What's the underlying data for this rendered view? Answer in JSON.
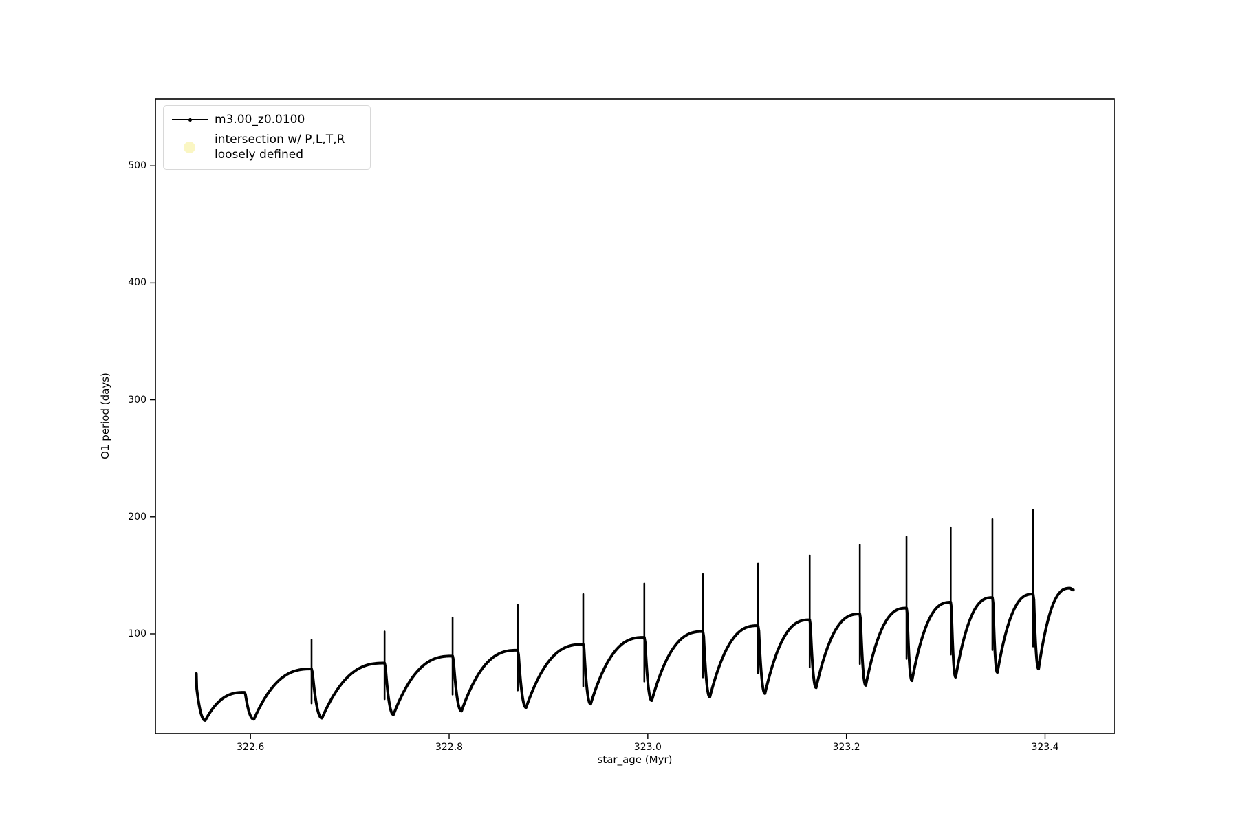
{
  "figure": {
    "background": "#ffffff"
  },
  "legend": {
    "entries": [
      {
        "label": "m3.00_z0.0100",
        "marker": "line-with-dot",
        "color": "#000000"
      },
      {
        "label_line1": "intersection w/ P,L,T,R",
        "label_line2": "loosely defined",
        "marker": "circle",
        "color": "#faf6c3"
      }
    ]
  },
  "chart_data": {
    "type": "line",
    "title": "",
    "xlabel": "star_age (Myr)",
    "ylabel": "O1 period (days)",
    "xlim": [
      322.5043,
      323.4696
    ],
    "ylim": [
      14.8,
      557.1
    ],
    "xticks": [
      322.6,
      322.8,
      323.0,
      323.2,
      323.4
    ],
    "xtick_labels": [
      "322.6",
      "322.8",
      "323.0",
      "323.2",
      "323.4"
    ],
    "yticks": [
      100,
      200,
      300,
      400,
      500
    ],
    "ytick_labels": [
      "100",
      "200",
      "300",
      "400",
      "500"
    ],
    "grid": false,
    "legend_position": "upper left",
    "series": [
      {
        "name": "m3.00_z0.0100",
        "color": "#000000",
        "x_unit": "Myr",
        "y_unit": "days",
        "description": "sawtooth pulsation-period track: slow concave rise to a cusp, narrow vertical spike, steep drop to a minimum, repeating",
        "start": {
          "age": 322.5455,
          "value": 66,
          "drop_to": 53
        },
        "cycles": [
          {
            "min_age": 322.5545,
            "min": 26,
            "cusp_age": 322.594,
            "cusp": 50,
            "spike_top": null
          },
          {
            "min_age": 322.6035,
            "min": 27,
            "cusp_age": 322.6615,
            "cusp": 70,
            "spike_top": 95
          },
          {
            "min_age": 322.672,
            "min": 28,
            "cusp_age": 322.735,
            "cusp": 75,
            "spike_top": 102
          },
          {
            "min_age": 322.744,
            "min": 31,
            "cusp_age": 322.8035,
            "cusp": 81,
            "spike_top": 114
          },
          {
            "min_age": 322.8125,
            "min": 34,
            "cusp_age": 322.869,
            "cusp": 86,
            "spike_top": 125
          },
          {
            "min_age": 322.8775,
            "min": 37,
            "cusp_age": 322.935,
            "cusp": 91,
            "spike_top": 134
          },
          {
            "min_age": 322.9425,
            "min": 40,
            "cusp_age": 322.9965,
            "cusp": 97,
            "spike_top": 143
          },
          {
            "min_age": 323.004,
            "min": 43,
            "cusp_age": 323.0555,
            "cusp": 102,
            "spike_top": 151
          },
          {
            "min_age": 323.0625,
            "min": 46,
            "cusp_age": 323.111,
            "cusp": 107,
            "spike_top": 160
          },
          {
            "min_age": 323.118,
            "min": 49,
            "cusp_age": 323.163,
            "cusp": 112,
            "spike_top": 167
          },
          {
            "min_age": 323.1695,
            "min": 54,
            "cusp_age": 323.2135,
            "cusp": 117,
            "spike_top": 176
          },
          {
            "min_age": 323.2195,
            "min": 56,
            "cusp_age": 323.2605,
            "cusp": 122,
            "spike_top": 183
          },
          {
            "min_age": 323.266,
            "min": 60,
            "cusp_age": 323.305,
            "cusp": 127,
            "spike_top": 191
          },
          {
            "min_age": 323.31,
            "min": 63,
            "cusp_age": 323.347,
            "cusp": 131,
            "spike_top": 198
          },
          {
            "min_age": 323.352,
            "min": 67,
            "cusp_age": 323.388,
            "cusp": 134,
            "spike_top": 206
          },
          {
            "min_age": 323.3935,
            "min": 70,
            "cusp_age": 323.425,
            "cusp": 139,
            "spike_top": null
          }
        ],
        "end": {
          "age": 323.4285,
          "value": 137.5
        }
      }
    ]
  }
}
